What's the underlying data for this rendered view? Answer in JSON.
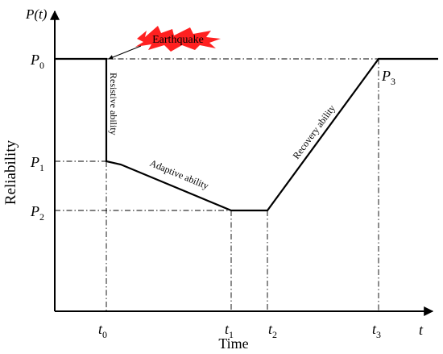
{
  "diagram": {
    "y_axis_symbol": "P(t)",
    "x_axis_symbol": "t",
    "y_axis_label": "Reliability",
    "x_axis_label": "Time",
    "event_label": "Earthquake",
    "event_color": "#ff2020",
    "levels": [
      {
        "base": "P",
        "sub": "0"
      },
      {
        "base": "P",
        "sub": "1"
      },
      {
        "base": "P",
        "sub": "2"
      }
    ],
    "point_label": {
      "base": "P",
      "sub": "3"
    },
    "times": [
      {
        "base": "t",
        "sub": "0"
      },
      {
        "base": "t",
        "sub": "1"
      },
      {
        "base": "t",
        "sub": "2"
      },
      {
        "base": "t",
        "sub": "3"
      }
    ],
    "phases": {
      "resistive": "Resistive ability",
      "adaptive": "Adaptive ability",
      "recovery": "Recovery ability"
    }
  }
}
